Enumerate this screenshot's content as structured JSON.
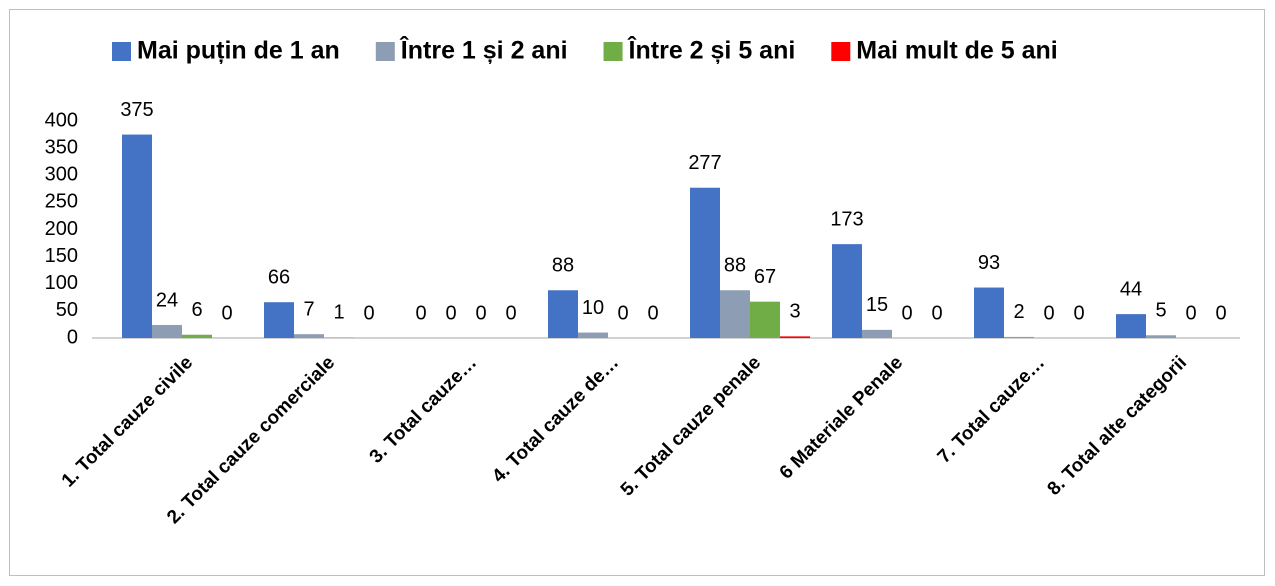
{
  "chart_data": {
    "type": "bar",
    "categories": [
      "1. Total cauze civile",
      "2. Total cauze comerciale",
      "3. Total cauze…",
      "4. Total cauze de…",
      "5. Total cauze penale",
      "6 Materiale Penale",
      "7. Total cauze…",
      "8. Total alte categorii"
    ],
    "series": [
      {
        "name": "Mai puțin de 1 an",
        "color": "#4472c4",
        "values": [
          375,
          66,
          0,
          88,
          277,
          173,
          93,
          44
        ]
      },
      {
        "name": "Între 1 și 2 ani",
        "color": "#8c9db4",
        "values": [
          24,
          7,
          0,
          10,
          88,
          15,
          2,
          5
        ]
      },
      {
        "name": "Între 2 și 5 ani",
        "color": "#70ad47",
        "values": [
          6,
          1,
          0,
          0,
          67,
          0,
          0,
          0
        ]
      },
      {
        "name": "Mai mult de 5 ani",
        "color": "#ff0000",
        "values": [
          0,
          0,
          0,
          0,
          3,
          0,
          0,
          0
        ]
      }
    ],
    "ylim": [
      0,
      400
    ],
    "yticks": [
      0,
      50,
      100,
      150,
      200,
      250,
      300,
      350,
      400
    ],
    "grid": false,
    "legend": "top"
  }
}
